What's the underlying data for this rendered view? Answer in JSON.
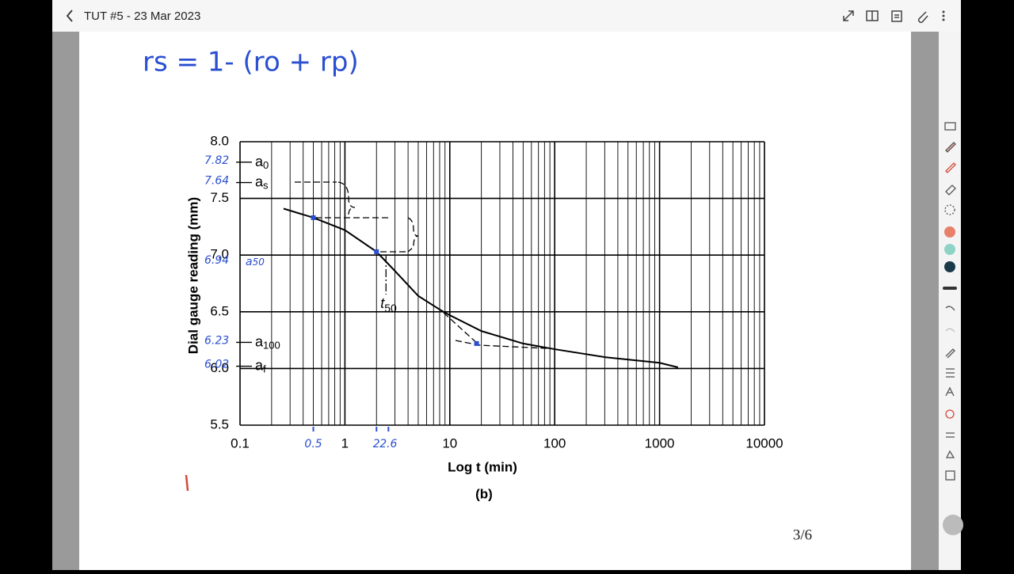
{
  "header": {
    "title": "TUT #5 - 23 Mar 2023"
  },
  "note": {
    "formula": "rs = 1- (ro + rp)",
    "page_number": "3/6"
  },
  "chart_data": {
    "type": "line",
    "y_label": "Dial gauge reading (mm)",
    "x_label": "Log t (min)",
    "caption": "(b)",
    "log_x": true,
    "grid": true,
    "minor_grid": true,
    "color": "#000000",
    "x": [
      0.26,
      0.5,
      1,
      2,
      3,
      5,
      8,
      10,
      20,
      50,
      100,
      300,
      1000,
      1500
    ],
    "values": [
      7.41,
      7.33,
      7.22,
      7.03,
      6.86,
      6.64,
      6.52,
      6.47,
      6.33,
      6.22,
      6.17,
      6.1,
      6.05,
      6.01
    ],
    "points": {
      "color": "#2a4fd0",
      "x": [
        0.5,
        2,
        18
      ],
      "values": [
        7.33,
        7.03,
        6.22
      ]
    },
    "xlim": [
      0.1,
      10000
    ],
    "xticks": [
      0.1,
      1,
      10,
      100,
      1000,
      10000
    ],
    "ylim": [
      5.5,
      8.0
    ],
    "yticks": [
      {
        "value": 8.0,
        "label": "8.0"
      },
      7.5,
      {
        "value": 7.0,
        "label": "7.0"
      },
      6.5,
      {
        "value": 6.0,
        "label": "6.0"
      },
      5.5
    ],
    "annotations": [
      {
        "symbol": "a",
        "sub": "0",
        "value": 7.82,
        "style": "print"
      },
      {
        "symbol": "a",
        "sub": "s",
        "value": 7.64,
        "style": "print"
      },
      {
        "symbol": "a",
        "sub": "50",
        "value": 6.94,
        "style": "hand"
      },
      {
        "symbol": "a",
        "sub": "100",
        "value": 6.23,
        "style": "print"
      },
      {
        "symbol": "a",
        "sub": "f",
        "value": 6.02,
        "style": "print"
      }
    ],
    "t50": {
      "symbol": "t",
      "sub": "50",
      "value": 2
    },
    "x_notes": [
      0.5,
      2,
      2.6
    ]
  }
}
